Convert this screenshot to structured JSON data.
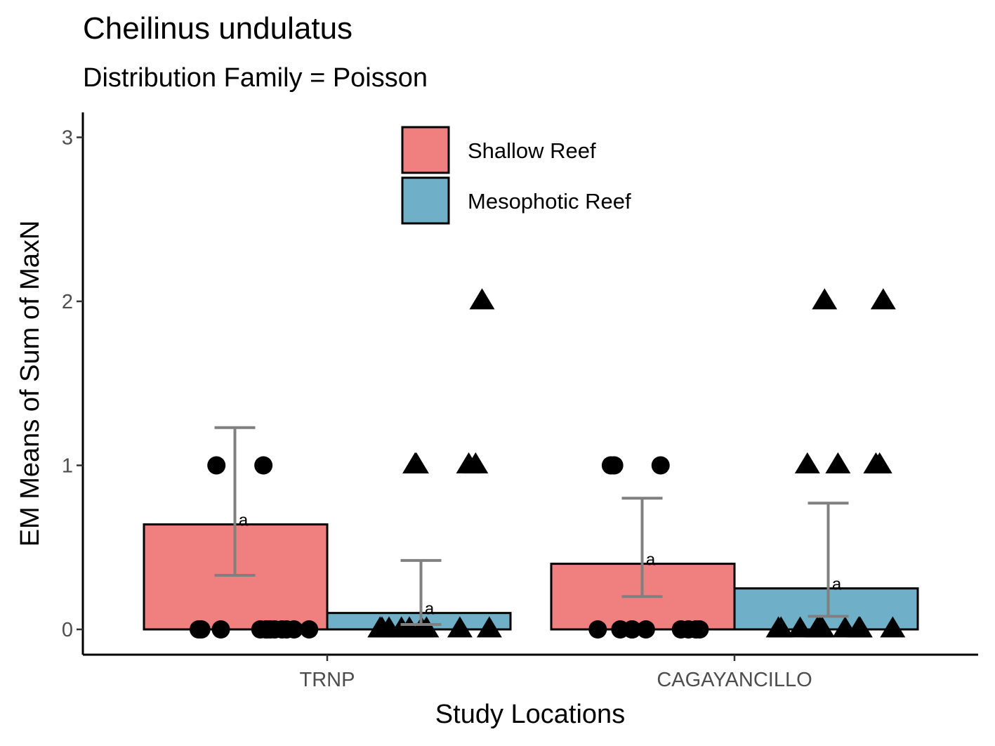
{
  "chart_data": {
    "type": "bar",
    "title": "Cheilinus undulatus",
    "subtitle": "Distribution Family = Poisson",
    "xlabel": "Study Locations",
    "ylabel": "EM Means of Sum of MaxN",
    "ylim": [
      -0.15,
      3.15
    ],
    "y_ticks": [
      0,
      1,
      2,
      3
    ],
    "categories": [
      "TRNP",
      "CAGAYANCILLO"
    ],
    "grid": false,
    "legend_position": "top-center",
    "series": [
      {
        "name": "Shallow Reef",
        "color": "#F08080",
        "marker": "circle",
        "values": [
          0.64,
          0.4
        ],
        "ci_low": [
          0.33,
          0.2
        ],
        "ci_high": [
          1.23,
          0.8
        ],
        "letters": [
          "a",
          "a"
        ],
        "raw_points": [
          {
            "category": "TRNP",
            "values": [
              1,
              1,
              0,
              0,
              0,
              0,
              0,
              0,
              0,
              0,
              0,
              0,
              0,
              0
            ]
          },
          {
            "category": "CAGAYANCILLO",
            "values": [
              1,
              1,
              1,
              0,
              0,
              0,
              0,
              0,
              0,
              0,
              0,
              0
            ]
          }
        ]
      },
      {
        "name": "Mesophotic Reef",
        "color": "#6FAFC7",
        "marker": "triangle",
        "values": [
          0.1,
          0.25
        ],
        "ci_low": [
          0.03,
          0.08
        ],
        "ci_high": [
          0.42,
          0.77
        ],
        "letters": [
          "a",
          "a"
        ],
        "raw_points": [
          {
            "category": "TRNP",
            "values": [
              2,
              1,
              1,
              1,
              1,
              0,
              0,
              0,
              0,
              0,
              0,
              0,
              0,
              0
            ]
          },
          {
            "category": "CAGAYANCILLO",
            "values": [
              2,
              2,
              1,
              1,
              1,
              1,
              0,
              0,
              0,
              0,
              0,
              0,
              0,
              0,
              0,
              0,
              0,
              0
            ]
          }
        ]
      }
    ]
  }
}
